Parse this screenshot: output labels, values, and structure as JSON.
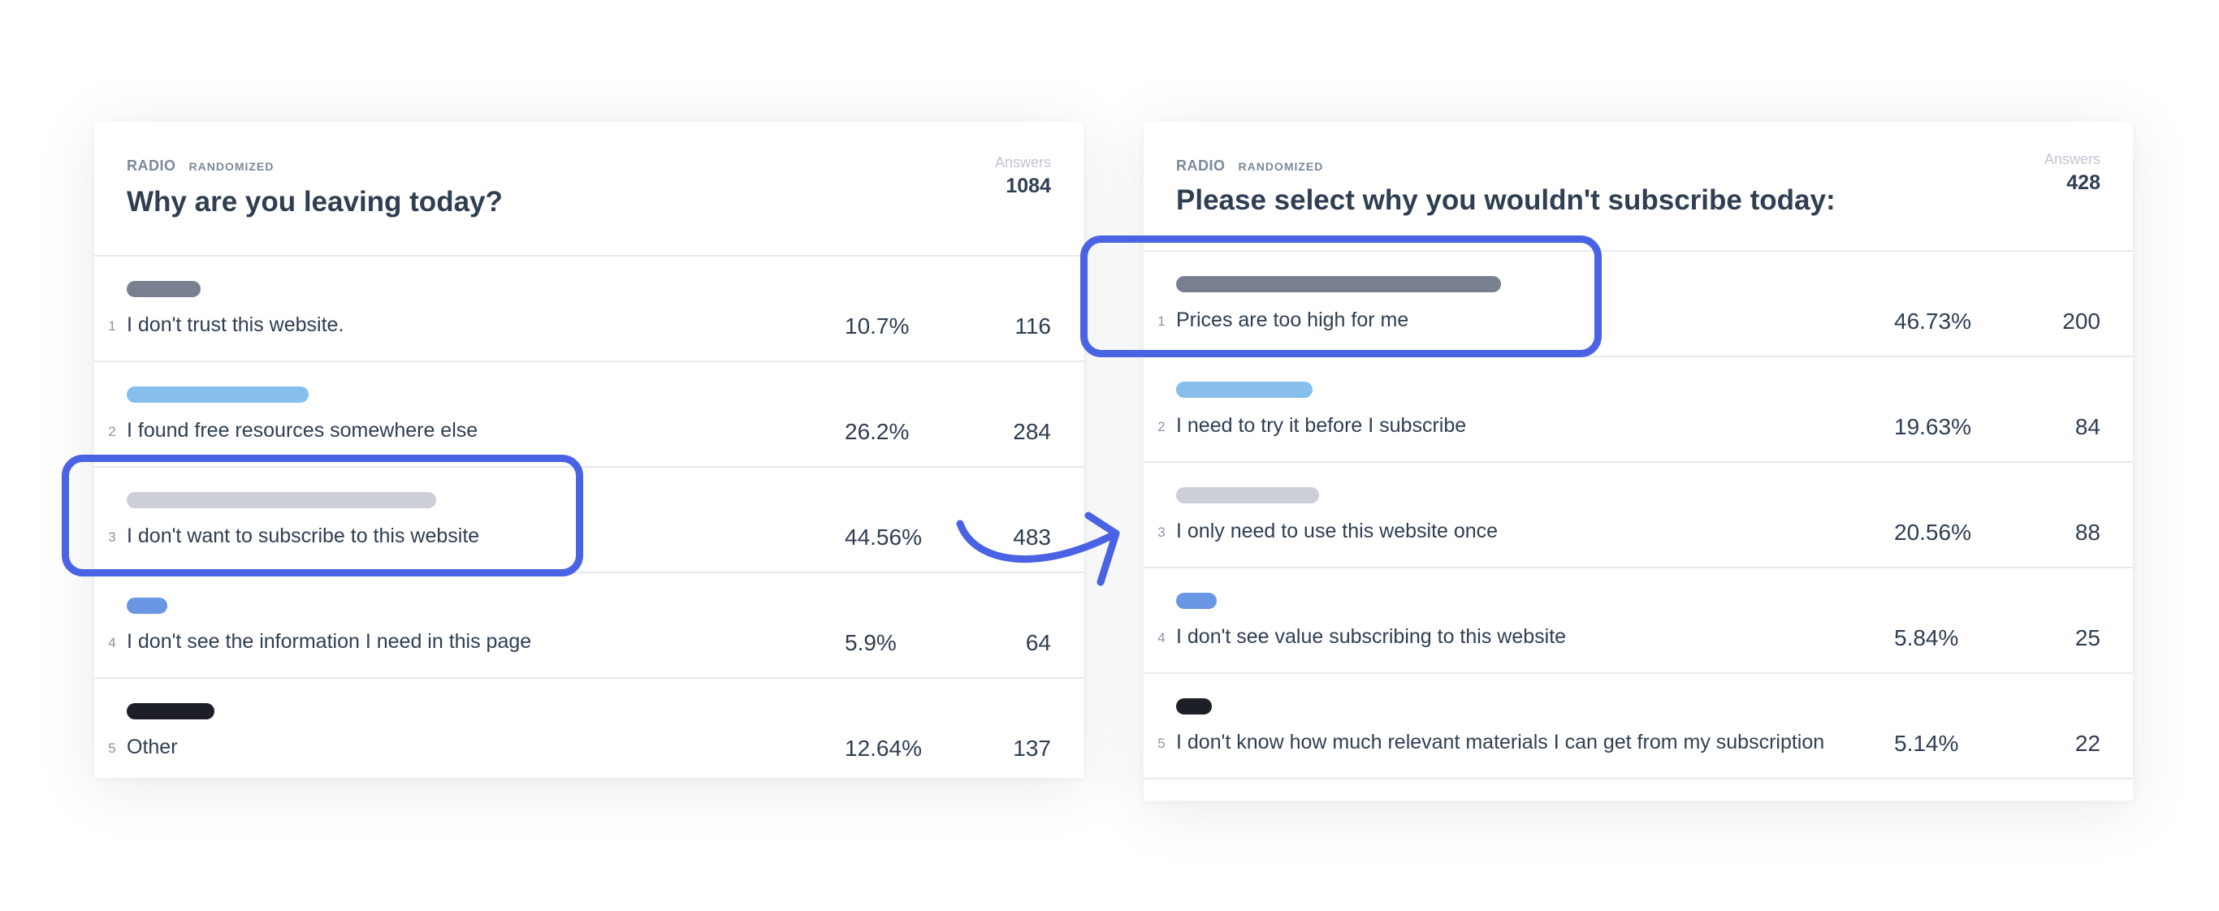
{
  "colors": {
    "accent": "#4a63e4",
    "text": "#2f3e51",
    "muted": "#7c8899",
    "divider": "#e7eaee"
  },
  "left_card": {
    "type_tag": "RADIO",
    "mode_tag": "RANDOMIZED",
    "question": "Why are you leaving today?",
    "answers_label": "Answers",
    "answers_count": "1084",
    "options": [
      {
        "index": "1",
        "label": "I don't trust this website.",
        "percent": "10.7%",
        "count": "116",
        "bar_fraction": 0.107,
        "bar_color": "#787f8e"
      },
      {
        "index": "2",
        "label": "I found free resources somewhere else",
        "percent": "26.2%",
        "count": "284",
        "bar_fraction": 0.262,
        "bar_color": "#86bfec"
      },
      {
        "index": "3",
        "label": "I don't want to subscribe to this website",
        "percent": "44.56%",
        "count": "483",
        "bar_fraction": 0.4456,
        "bar_color": "#cccfd6"
      },
      {
        "index": "4",
        "label": "I don't see the information I need in this page",
        "percent": "5.9%",
        "count": "64",
        "bar_fraction": 0.059,
        "bar_color": "#6a97e3"
      },
      {
        "index": "5",
        "label": "Other",
        "percent": "12.64%",
        "count": "137",
        "bar_fraction": 0.1264,
        "bar_color": "#1d1f27"
      }
    ]
  },
  "right_card": {
    "type_tag": "RADIO",
    "mode_tag": "RANDOMIZED",
    "question": "Please select why you wouldn't subscribe today:",
    "answers_label": "Answers",
    "answers_count": "428",
    "options": [
      {
        "index": "1",
        "label": "Prices are too high for me",
        "percent": "46.73%",
        "count": "200",
        "bar_fraction": 0.4673,
        "bar_color": "#787f8e"
      },
      {
        "index": "2",
        "label": "I need to try it before I subscribe",
        "percent": "19.63%",
        "count": "84",
        "bar_fraction": 0.1963,
        "bar_color": "#86bfec"
      },
      {
        "index": "3",
        "label": "I only need to use this website once",
        "percent": "20.56%",
        "count": "88",
        "bar_fraction": 0.2056,
        "bar_color": "#cccfd6"
      },
      {
        "index": "4",
        "label": "I don't see value subscribing to this website",
        "percent": "5.84%",
        "count": "25",
        "bar_fraction": 0.0584,
        "bar_color": "#6a97e3"
      },
      {
        "index": "5",
        "label": "I don't know how much relevant materials I can get from my subscription",
        "percent": "5.14%",
        "count": "22",
        "bar_fraction": 0.0514,
        "bar_color": "#1d1f27"
      }
    ]
  }
}
